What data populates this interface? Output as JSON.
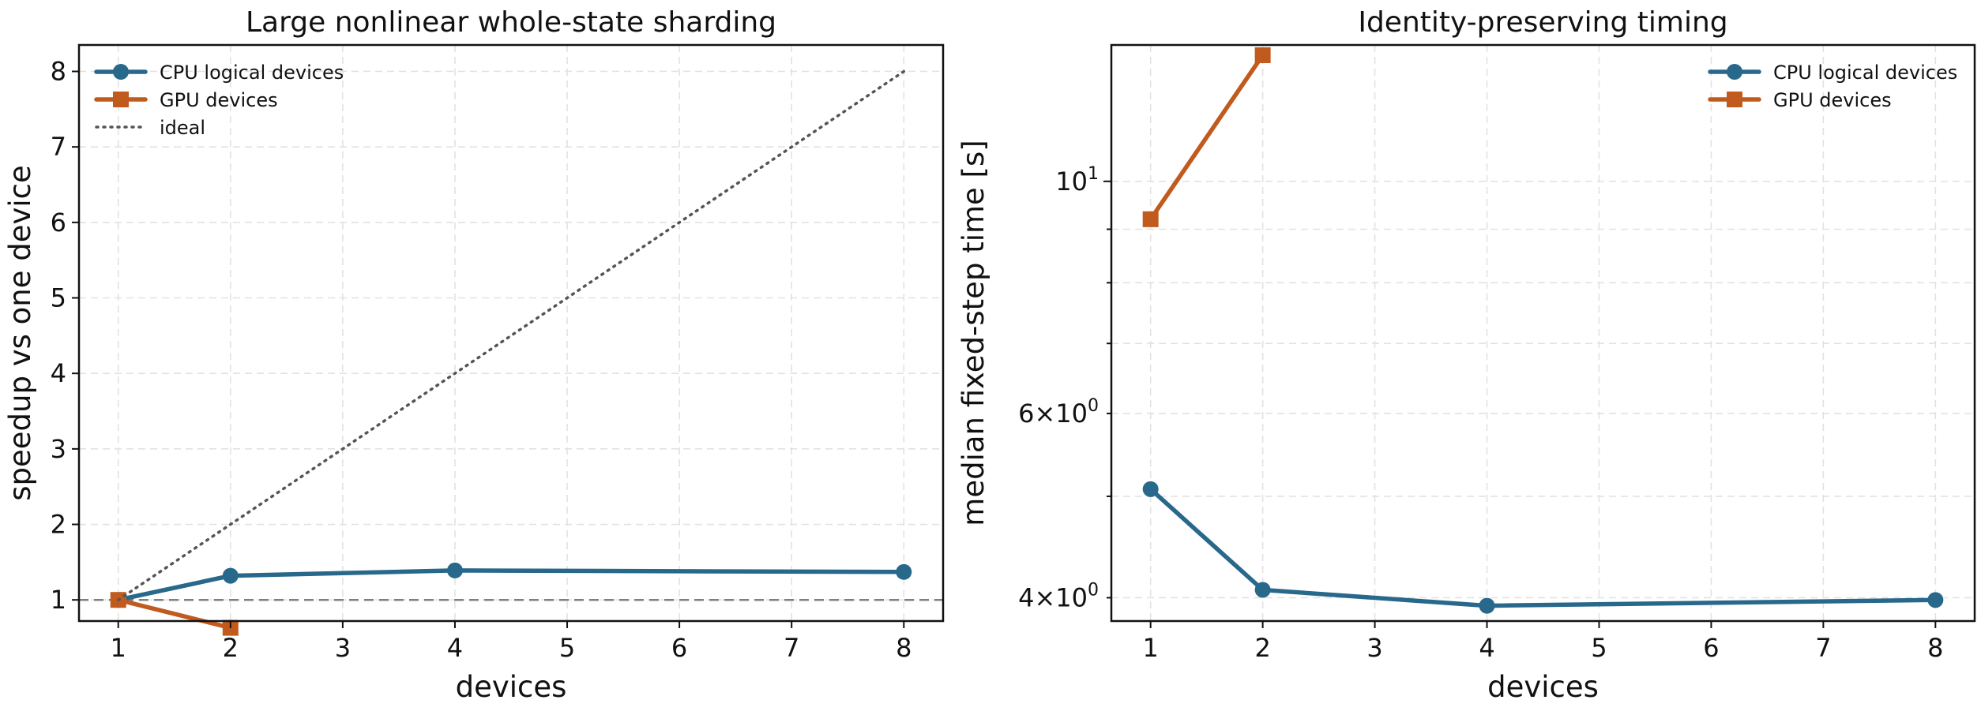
{
  "chart_data": [
    {
      "type": "line",
      "title": "Large nonlinear whole-state sharding",
      "xlabel": "devices",
      "ylabel": "speedup vs one device",
      "xlim": [
        0.65,
        8.35
      ],
      "ylim": [
        0.72,
        8.35
      ],
      "yscale": "linear",
      "xticks": [
        1,
        2,
        3,
        4,
        5,
        6,
        7,
        8
      ],
      "yticks": [
        1,
        2,
        3,
        4,
        5,
        6,
        7,
        8
      ],
      "grid": true,
      "legend_position": "top-left",
      "reference_lines": [
        {
          "y": 1,
          "style": "dashed",
          "color": "#7f7f7f"
        }
      ],
      "series": [
        {
          "name": "CPU logical devices",
          "x": [
            1,
            2,
            4,
            8
          ],
          "y": [
            1.0,
            1.32,
            1.39,
            1.37
          ],
          "color": "#28688a",
          "marker": "circle",
          "style": "solid"
        },
        {
          "name": "GPU devices",
          "x": [
            1,
            2
          ],
          "y": [
            1.0,
            0.63
          ],
          "color": "#c15a1d",
          "marker": "square",
          "style": "solid"
        },
        {
          "name": "ideal",
          "x": [
            1,
            8
          ],
          "y": [
            1,
            8
          ],
          "color": "#555555",
          "marker": "none",
          "style": "dotted"
        }
      ]
    },
    {
      "type": "line",
      "title": "Identity-preserving timing",
      "xlabel": "devices",
      "ylabel": "median fixed-step time [s]",
      "xlim": [
        0.65,
        8.35
      ],
      "ylim": [
        3.8,
        13.5
      ],
      "yscale": "log",
      "xticks": [
        1,
        2,
        3,
        4,
        5,
        6,
        7,
        8
      ],
      "yticks_major": [
        {
          "value": 10,
          "base": "10",
          "exp": "1"
        }
      ],
      "yticks_minor": [
        {
          "value": 4,
          "mant": "4",
          "base": "10",
          "exp": "0"
        },
        {
          "value": 5,
          "label": false
        },
        {
          "value": 6,
          "mant": "6",
          "base": "10",
          "exp": "0"
        },
        {
          "value": 7,
          "label": false
        },
        {
          "value": 8,
          "label": false
        },
        {
          "value": 9,
          "label": false
        }
      ],
      "grid": true,
      "legend_position": "top-right",
      "series": [
        {
          "name": "CPU logical devices",
          "x": [
            1,
            2,
            4,
            8
          ],
          "y": [
            5.08,
            4.07,
            3.93,
            3.98
          ],
          "color": "#28688a",
          "marker": "circle",
          "style": "solid"
        },
        {
          "name": "GPU devices",
          "x": [
            1,
            2
          ],
          "y": [
            9.2,
            13.2
          ],
          "color": "#c15a1d",
          "marker": "square",
          "style": "solid"
        }
      ]
    }
  ]
}
